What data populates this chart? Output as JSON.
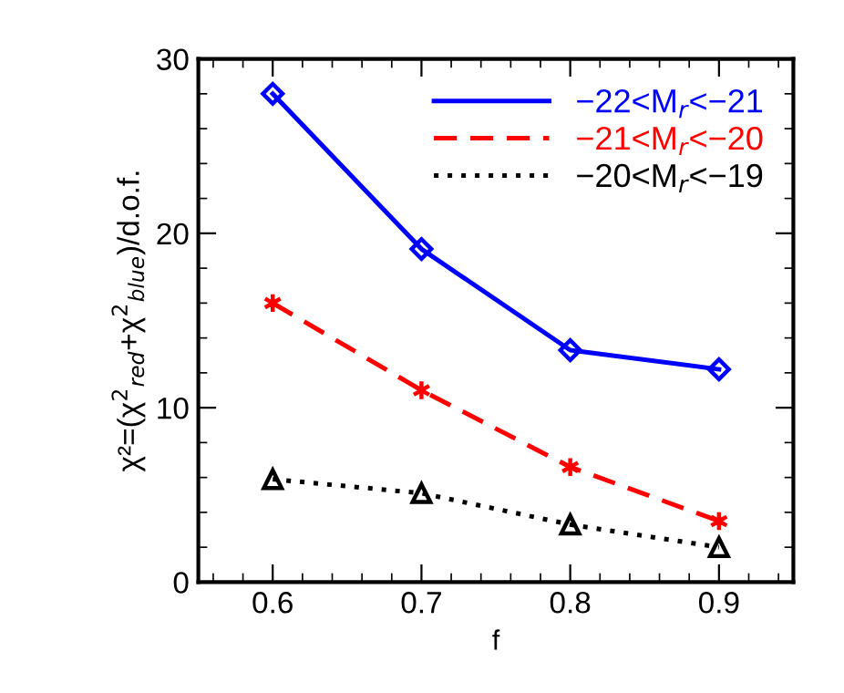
{
  "chart_data": {
    "type": "line",
    "xlabel": "f",
    "ylabel": "χ²=(χ$^{2}$$_{red}$+χ$^{2}$$_{blue}$)/d.o.f.",
    "x": [
      0.6,
      0.7,
      0.8,
      0.9
    ],
    "series": [
      {
        "name": "−22<M$_{r}$<−21",
        "color": "#0000ff",
        "values": [
          28.0,
          19.1,
          13.3,
          12.2
        ],
        "marker": "diamond",
        "line_style": "solid"
      },
      {
        "name": "−21<M$_{r}$<−20",
        "color": "#ff0000",
        "values": [
          16.0,
          11.0,
          6.6,
          3.5
        ],
        "marker": "cross",
        "line_style": "dashed"
      },
      {
        "name": "−20<M$_{r}$<−19",
        "color": "#000000",
        "values": [
          5.9,
          5.1,
          3.3,
          2.0
        ],
        "marker": "triangle",
        "line_style": "dotted"
      }
    ],
    "xlim": [
      0.55,
      0.95
    ],
    "xticks": [
      {
        "value": 0.6,
        "label": "0.6"
      },
      {
        "value": 0.7,
        "label": "0.7"
      },
      {
        "value": 0.8,
        "label": "0.8"
      },
      {
        "value": 0.9,
        "label": "0.9"
      }
    ],
    "ylim": [
      0,
      30
    ],
    "yticks": [
      0,
      10,
      20,
      30
    ],
    "grid": false,
    "legend": "top right"
  }
}
